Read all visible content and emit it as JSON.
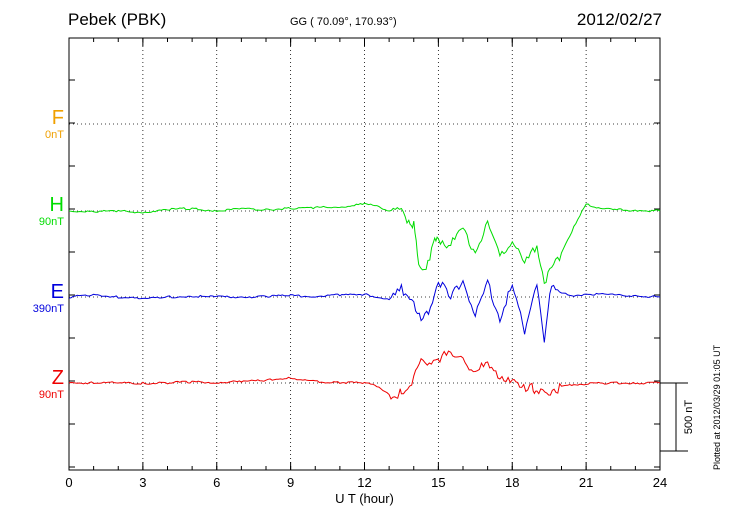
{
  "header": {
    "station": "Pebek (PBK)",
    "coords": "GG ( 70.09°, 170.93°)",
    "date": "2012/02/27"
  },
  "plotted_note": "Plotted at 2012/03/29 01:05 UT",
  "channels": [
    {
      "name": "F",
      "scale": "0nT",
      "color": "#f0a000"
    },
    {
      "name": "H",
      "scale": "90nT",
      "color": "#00dd00"
    },
    {
      "name": "E",
      "scale": "390nT",
      "color": "#0000dd"
    },
    {
      "name": "Z",
      "scale": "90nT",
      "color": "#ee0000"
    }
  ],
  "scale_bar": {
    "label": "500 nT",
    "value_nT": 500
  },
  "chart_data": {
    "type": "line",
    "title": "Pebek (PBK)",
    "xlabel": "U T (hour)",
    "ylabel": "",
    "xlim": [
      0,
      24
    ],
    "xticks": [
      0,
      3,
      6,
      9,
      12,
      15,
      18,
      21,
      24
    ],
    "grid": true,
    "units": "nT",
    "series": [
      {
        "name": "F",
        "color": "#f0a000",
        "x": [
          0,
          24
        ],
        "y": [
          0,
          0
        ]
      },
      {
        "name": "H",
        "color": "#00dd00",
        "x": [
          0,
          1,
          2,
          3,
          4,
          5,
          6,
          7,
          8,
          9,
          10,
          11,
          11.5,
          12,
          12.5,
          13,
          13.5,
          13.8,
          14,
          14.2,
          14.5,
          14.8,
          15,
          15.5,
          16,
          16.5,
          17,
          17.5,
          18,
          18.5,
          19,
          19.3,
          19.6,
          20,
          20.5,
          21,
          21.5,
          22,
          23,
          24
        ],
        "y": [
          0,
          -5,
          0,
          -10,
          10,
          20,
          0,
          15,
          10,
          20,
          25,
          30,
          40,
          50,
          40,
          0,
          -20,
          -60,
          -100,
          -400,
          -400,
          -250,
          -200,
          -250,
          -150,
          -300,
          -100,
          -350,
          -200,
          -400,
          -250,
          -500,
          -450,
          -300,
          -120,
          50,
          25,
          10,
          5,
          0
        ]
      },
      {
        "name": "E",
        "color": "#0000dd",
        "x": [
          0,
          1,
          2,
          3,
          4,
          5,
          6,
          7,
          8,
          9,
          10,
          11,
          12,
          12.5,
          13,
          13.5,
          14,
          14.3,
          14.6,
          15,
          15.5,
          16,
          16.5,
          17,
          17.5,
          18,
          18.5,
          19,
          19.3,
          19.6,
          20,
          20.5,
          21,
          22,
          23,
          24
        ],
        "y": [
          0,
          15,
          0,
          -15,
          0,
          5,
          0,
          0,
          5,
          10,
          5,
          15,
          20,
          0,
          -20,
          50,
          -30,
          -180,
          -120,
          120,
          -20,
          150,
          -150,
          100,
          -150,
          80,
          -250,
          120,
          -350,
          100,
          30,
          0,
          25,
          15,
          10,
          0
        ]
      },
      {
        "name": "Z",
        "color": "#ee0000",
        "x": [
          0,
          1,
          2,
          3,
          4,
          5,
          6,
          7,
          8,
          9,
          9.5,
          10,
          11,
          12,
          12.5,
          13,
          13.3,
          13.5,
          14,
          14.3,
          14.8,
          15.5,
          16,
          16.5,
          17,
          17.5,
          18,
          18.3,
          18.8,
          19,
          19.4,
          19.7,
          20,
          20.5,
          21,
          22,
          23,
          24
        ],
        "y": [
          0,
          2,
          0,
          -3,
          2,
          8,
          5,
          10,
          20,
          40,
          20,
          10,
          5,
          0,
          -20,
          -80,
          -140,
          -60,
          40,
          150,
          180,
          200,
          160,
          100,
          120,
          60,
          40,
          -60,
          0,
          -80,
          -80,
          -40,
          -30,
          -10,
          -5,
          0,
          0,
          0
        ]
      }
    ]
  }
}
